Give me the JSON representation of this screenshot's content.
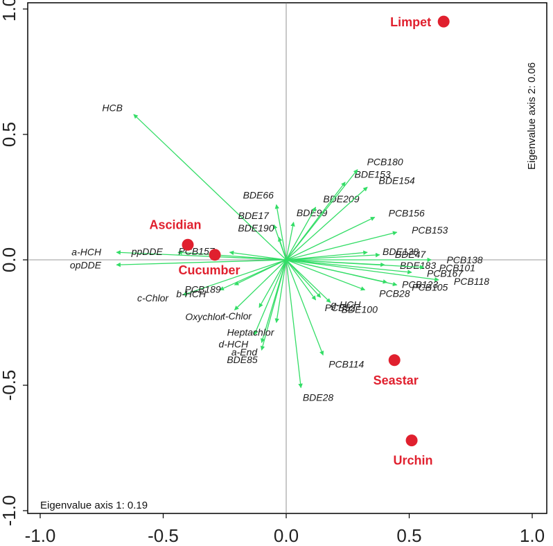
{
  "chart_data": {
    "type": "scatter",
    "subtype": "ordination-biplot",
    "xlim": [
      -1.0,
      1.0
    ],
    "ylim": [
      -1.0,
      1.0
    ],
    "x_ticks": [
      "-1.0",
      "-0.5",
      "0.0",
      "0.5",
      "1.0"
    ],
    "y_ticks": [
      "-1.0",
      "-0.5",
      "0.0",
      "0.5",
      "1.0"
    ],
    "grid": false,
    "zero_lines": true,
    "arrow_color": "#33dd66",
    "sample_color": "#e0202e",
    "annotations": {
      "axis1": "Eigenvalue axis 1: 0.19",
      "axis2": "Eigenvalue axis 2: 0.06"
    },
    "samples": [
      {
        "name": "Limpet",
        "x": 0.64,
        "y": 0.95
      },
      {
        "name": "Ascidian",
        "x": -0.4,
        "y": 0.06
      },
      {
        "name": "Cucumber",
        "x": -0.29,
        "y": 0.02
      },
      {
        "name": "Seastar",
        "x": 0.44,
        "y": -0.4
      },
      {
        "name": "Urchin",
        "x": 0.51,
        "y": -0.72
      }
    ],
    "variables": [
      {
        "name": "HCB",
        "x": -0.62,
        "y": 0.58
      },
      {
        "name": "a-HCH",
        "x": -0.69,
        "y": 0.03
      },
      {
        "name": "ppDDE",
        "x": -0.44,
        "y": 0.03
      },
      {
        "name": "opDDE",
        "x": -0.69,
        "y": -0.02
      },
      {
        "name": "PCB157",
        "x": -0.23,
        "y": 0.03
      },
      {
        "name": "c-Chlor",
        "x": -0.42,
        "y": -0.14
      },
      {
        "name": "b-HCH",
        "x": -0.27,
        "y": -0.12
      },
      {
        "name": "PCB189",
        "x": -0.21,
        "y": -0.1
      },
      {
        "name": "Oxychlor",
        "x": -0.21,
        "y": -0.2
      },
      {
        "name": "t-Chlor",
        "x": -0.11,
        "y": -0.19
      },
      {
        "name": "d-HCH",
        "x": -0.13,
        "y": -0.3
      },
      {
        "name": "a-End",
        "x": -0.1,
        "y": -0.33
      },
      {
        "name": "BDE85",
        "x": -0.1,
        "y": -0.36
      },
      {
        "name": "Heptachlor",
        "x": -0.04,
        "y": -0.25
      },
      {
        "name": "BDE17",
        "x": -0.05,
        "y": 0.14
      },
      {
        "name": "BDE190",
        "x": -0.03,
        "y": 0.09
      },
      {
        "name": "BDE66",
        "x": -0.04,
        "y": 0.22
      },
      {
        "name": "BDE99",
        "x": 0.03,
        "y": 0.15
      },
      {
        "name": "BDE209",
        "x": 0.12,
        "y": 0.21
      },
      {
        "name": "BDE153",
        "x": 0.24,
        "y": 0.31
      },
      {
        "name": "PCB180",
        "x": 0.29,
        "y": 0.36
      },
      {
        "name": "BDE154",
        "x": 0.33,
        "y": 0.29
      },
      {
        "name": "PCB156",
        "x": 0.36,
        "y": 0.17
      },
      {
        "name": "PCB153",
        "x": 0.45,
        "y": 0.11
      },
      {
        "name": "BDE138",
        "x": 0.33,
        "y": 0.03
      },
      {
        "name": "BDE47",
        "x": 0.38,
        "y": 0.02
      },
      {
        "name": "PCB138",
        "x": 0.59,
        "y": 0.0
      },
      {
        "name": "BDE183",
        "x": 0.4,
        "y": -0.02
      },
      {
        "name": "PCB101",
        "x": 0.56,
        "y": -0.03
      },
      {
        "name": "PCB167",
        "x": 0.51,
        "y": -0.05
      },
      {
        "name": "PCB118",
        "x": 0.62,
        "y": -0.08
      },
      {
        "name": "PCB123",
        "x": 0.41,
        "y": -0.09
      },
      {
        "name": "PCB105",
        "x": 0.45,
        "y": -0.1
      },
      {
        "name": "PCB28",
        "x": 0.32,
        "y": -0.12
      },
      {
        "name": "g-HCH",
        "x": 0.14,
        "y": -0.15
      },
      {
        "name": "PCB52",
        "x": 0.12,
        "y": -0.16
      },
      {
        "name": "BDE100",
        "x": 0.18,
        "y": -0.17
      },
      {
        "name": "PCB114",
        "x": 0.15,
        "y": -0.38
      },
      {
        "name": "BDE28",
        "x": 0.06,
        "y": -0.51
      }
    ]
  }
}
